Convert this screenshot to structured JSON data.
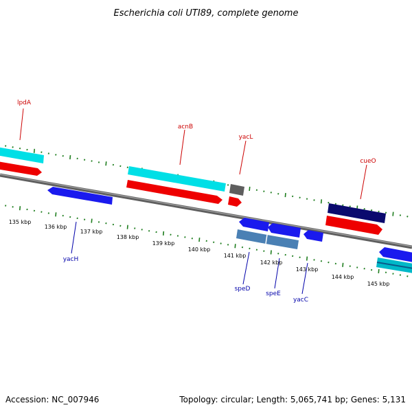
{
  "title": "Escherichia coli UTI89, complete genome",
  "footer": {
    "accession": "Accession: NC_007946",
    "topology": "Topology: circular; Length: 5,065,741 bp; Genes: 5,131"
  },
  "colors": {
    "backbone": "#7a7a7a",
    "tick": "#1e7d1e",
    "fwd_label": "#cc0000",
    "rev_label": "#0000aa",
    "cyan": "#00dfe6",
    "red": "#ee0000",
    "blue": "#1a1aee",
    "navy": "#0a0a6e",
    "steel": "#4a80b4",
    "gray": "#5e5e5e"
  },
  "scale_labels": [
    "135 kbp",
    "136 kbp",
    "137 kbp",
    "138 kbp",
    "139 kbp",
    "140 kbp",
    "141 kbp",
    "142 kbp",
    "143 kbp",
    "144 kbp",
    "145 kbp"
  ],
  "genes": [
    {
      "label": "lpdA",
      "strand": "forward"
    },
    {
      "label": "acnB",
      "strand": "forward"
    },
    {
      "label": "yacL",
      "strand": "forward"
    },
    {
      "label": "cueO",
      "strand": "forward"
    },
    {
      "label": "yacH",
      "strand": "reverse"
    },
    {
      "label": "speD",
      "strand": "reverse"
    },
    {
      "label": "speE",
      "strand": "reverse"
    },
    {
      "label": "yacC",
      "strand": "reverse"
    }
  ]
}
